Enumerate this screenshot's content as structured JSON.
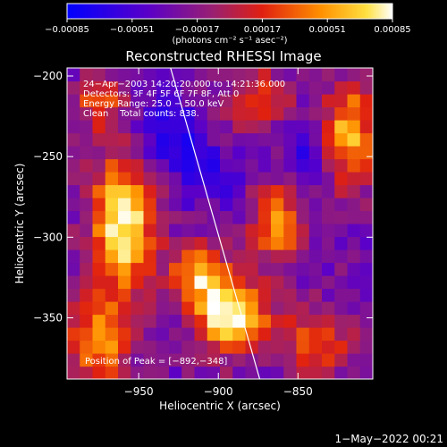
{
  "colors": {
    "background": "#000000",
    "foreground": "#ffffff"
  },
  "chart_data": {
    "type": "heatmap",
    "title": "Reconstructed RHESSI Image",
    "xlabel": "Heliocentric X (arcsec)",
    "ylabel": "Heliocentric Y (arcsec)",
    "xlim": [
      -995,
      -803
    ],
    "ylim": [
      -388,
      -195
    ],
    "xticks": [
      -950,
      -900,
      -850
    ],
    "xtick_labels": [
      "−950",
      "−900",
      "−850"
    ],
    "yticks": [
      -200,
      -250,
      -300,
      -350
    ],
    "ytick_labels": [
      "−200",
      "−250",
      "−300",
      "−350"
    ],
    "colorbar": {
      "min": -0.00085,
      "max": 0.00085,
      "colormap": "blue-purple-red-yellow-white",
      "ticks": [
        -0.00085,
        -0.00051,
        -0.00017,
        0.00017,
        0.00051,
        0.00085
      ],
      "tick_labels": [
        "−0.00085",
        "−0.00051",
        "−0.00017",
        "0.00017",
        "0.00051",
        "0.00085"
      ],
      "unit_label": "(photons cm⁻² s⁻¹ asec⁻²)"
    },
    "annotations": [
      "24−Apr−2003 14:20:20.000 to 14:21:36.000",
      "Detectors: 3F 4F 5F 6F 7F 8F, Att 0",
      "Energy Range: 25.0 − 50.0 keV",
      "Clean    Total counts: 838."
    ],
    "peak_label": "Position of Peak = [−892,−348]",
    "peak": [
      -892,
      -348
    ],
    "limb_line": [
      [
        -930,
        -195
      ],
      [
        -874,
        -388
      ]
    ],
    "grid_nx": 24,
    "grid_ny": 24,
    "grid_seed": 7,
    "emission_sources": [
      {
        "x": -960,
        "y": -292,
        "amp": 0.95,
        "sx": 14,
        "sy": 30
      },
      {
        "x": -892,
        "y": -348,
        "amp": 1.0,
        "sx": 16,
        "sy": 16
      },
      {
        "x": -912,
        "y": -322,
        "amp": 0.7,
        "sx": 12,
        "sy": 12
      },
      {
        "x": -818,
        "y": -235,
        "amp": 0.75,
        "sx": 12,
        "sy": 22
      },
      {
        "x": -862,
        "y": -292,
        "amp": 0.6,
        "sx": 12,
        "sy": 18
      },
      {
        "x": -975,
        "y": -365,
        "amp": 0.65,
        "sx": 14,
        "sy": 18
      },
      {
        "x": -838,
        "y": -365,
        "amp": 0.5,
        "sx": 16,
        "sy": 14
      },
      {
        "x": -875,
        "y": -215,
        "amp": 0.45,
        "sx": 14,
        "sy": 14
      },
      {
        "x": -975,
        "y": -215,
        "amp": 0.5,
        "sx": 10,
        "sy": 12
      }
    ],
    "dark_regions": [
      {
        "x": -930,
        "y": -235,
        "amp": 0.75,
        "sx": 14,
        "sy": 14
      },
      {
        "x": -905,
        "y": -262,
        "amp": 0.55,
        "sx": 14,
        "sy": 12
      },
      {
        "x": -845,
        "y": -245,
        "amp": 0.5,
        "sx": 12,
        "sy": 14
      }
    ]
  },
  "footer": {
    "timestamp": "1−May−2022 00:21"
  }
}
